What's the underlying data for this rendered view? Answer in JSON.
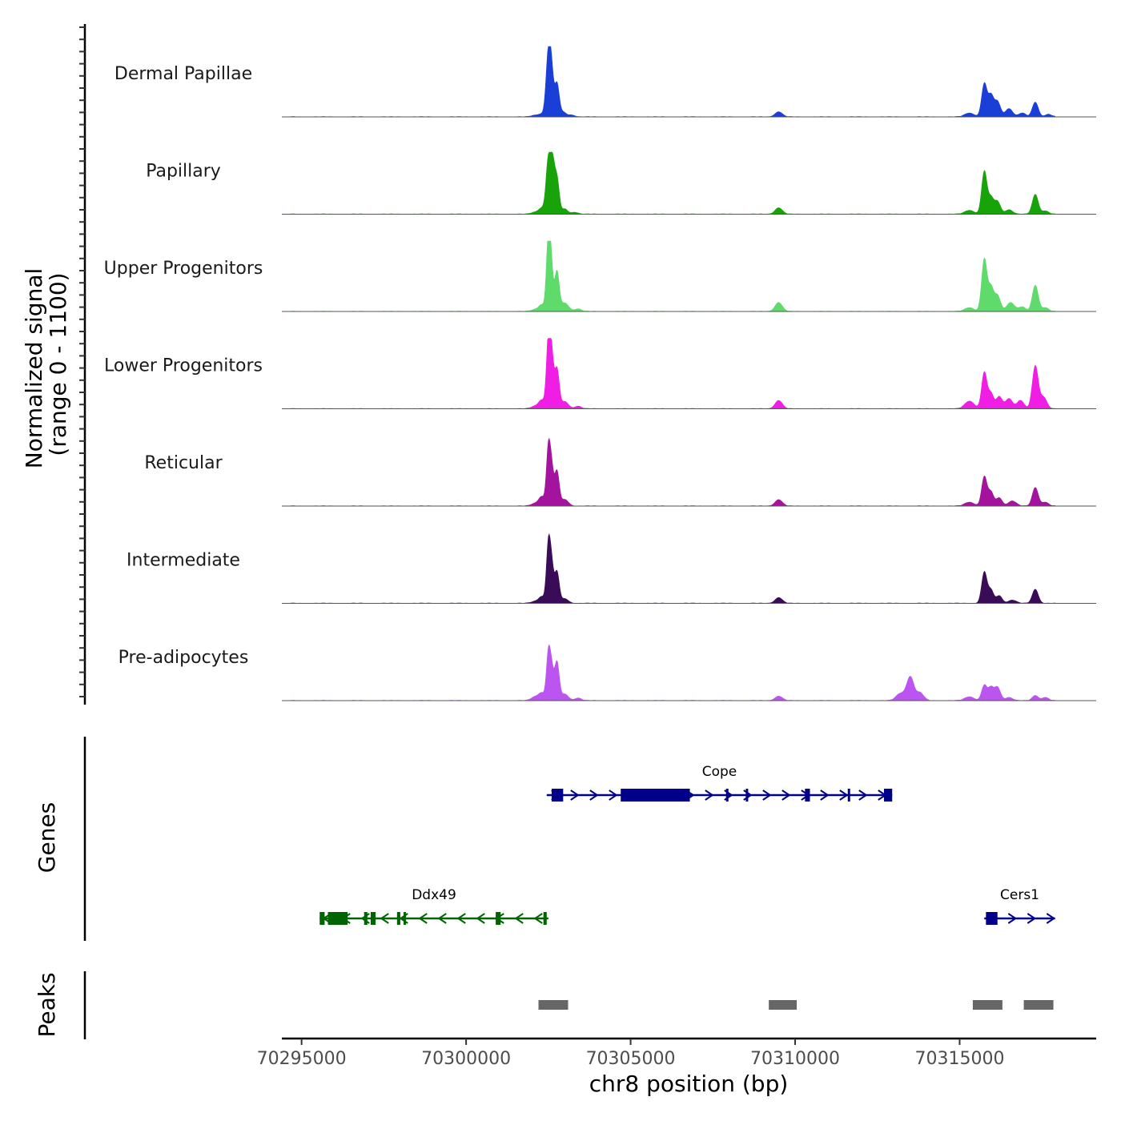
{
  "chart_data": {
    "type": "area",
    "title": "",
    "chromosome": "chr8",
    "xlabel": "chr8 position (bp)",
    "xlim": [
      70294400,
      70319150
    ],
    "x_ticks": [
      70295000,
      70300000,
      70305000,
      70310000,
      70315000
    ],
    "x_tick_labels": [
      "70295000",
      "70300000",
      "70305000",
      "70310000",
      "70315000"
    ],
    "signal_axis": {
      "label_line1": "Normalized signal",
      "label_line2": "(range 0 - 1100)",
      "ylim": [
        0,
        1100
      ]
    },
    "series": [
      {
        "name": "Dermal Papillae",
        "color": "#1a3fd6",
        "peaks": [
          {
            "center": 70302100,
            "width": 120,
            "height": 25
          },
          {
            "center": 70302300,
            "width": 90,
            "height": 40
          },
          {
            "center": 70302500,
            "width": 70,
            "height": 1000
          },
          {
            "center": 70302600,
            "width": 60,
            "height": 560
          },
          {
            "center": 70302760,
            "width": 70,
            "height": 520
          },
          {
            "center": 70302950,
            "width": 90,
            "height": 70
          },
          {
            "center": 70303200,
            "width": 100,
            "height": 30
          },
          {
            "center": 70309500,
            "width": 110,
            "height": 80
          },
          {
            "center": 70315300,
            "width": 140,
            "height": 60
          },
          {
            "center": 70315750,
            "width": 80,
            "height": 520
          },
          {
            "center": 70315950,
            "width": 80,
            "height": 330
          },
          {
            "center": 70316150,
            "width": 90,
            "height": 240
          },
          {
            "center": 70316500,
            "width": 110,
            "height": 130
          },
          {
            "center": 70316900,
            "width": 100,
            "height": 60
          },
          {
            "center": 70317300,
            "width": 90,
            "height": 230
          },
          {
            "center": 70317700,
            "width": 100,
            "height": 40
          }
        ]
      },
      {
        "name": "Papillary",
        "color": "#18a30a",
        "peaks": [
          {
            "center": 70302100,
            "width": 120,
            "height": 30
          },
          {
            "center": 70302300,
            "width": 90,
            "height": 90
          },
          {
            "center": 70302500,
            "width": 70,
            "height": 860
          },
          {
            "center": 70302630,
            "width": 60,
            "height": 700
          },
          {
            "center": 70302760,
            "width": 70,
            "height": 560
          },
          {
            "center": 70303000,
            "width": 90,
            "height": 80
          },
          {
            "center": 70303300,
            "width": 100,
            "height": 30
          },
          {
            "center": 70309500,
            "width": 110,
            "height": 100
          },
          {
            "center": 70315300,
            "width": 140,
            "height": 60
          },
          {
            "center": 70315750,
            "width": 80,
            "height": 670
          },
          {
            "center": 70315950,
            "width": 80,
            "height": 250
          },
          {
            "center": 70316150,
            "width": 90,
            "height": 200
          },
          {
            "center": 70316500,
            "width": 110,
            "height": 70
          },
          {
            "center": 70317300,
            "width": 90,
            "height": 310
          },
          {
            "center": 70317600,
            "width": 100,
            "height": 50
          }
        ]
      },
      {
        "name": "Upper Progenitors",
        "color": "#5fdb6c",
        "peaks": [
          {
            "center": 70302100,
            "width": 120,
            "height": 30
          },
          {
            "center": 70302300,
            "width": 90,
            "height": 100
          },
          {
            "center": 70302500,
            "width": 60,
            "height": 1100
          },
          {
            "center": 70302580,
            "width": 60,
            "height": 620
          },
          {
            "center": 70302760,
            "width": 70,
            "height": 620
          },
          {
            "center": 70303000,
            "width": 120,
            "height": 130
          },
          {
            "center": 70303400,
            "width": 100,
            "height": 40
          },
          {
            "center": 70309500,
            "width": 110,
            "height": 140
          },
          {
            "center": 70315300,
            "width": 140,
            "height": 60
          },
          {
            "center": 70315750,
            "width": 80,
            "height": 820
          },
          {
            "center": 70315950,
            "width": 80,
            "height": 370
          },
          {
            "center": 70316150,
            "width": 90,
            "height": 250
          },
          {
            "center": 70316550,
            "width": 120,
            "height": 140
          },
          {
            "center": 70316900,
            "width": 100,
            "height": 70
          },
          {
            "center": 70317300,
            "width": 90,
            "height": 410
          },
          {
            "center": 70317600,
            "width": 100,
            "height": 60
          }
        ]
      },
      {
        "name": "Lower Progenitors",
        "color": "#f01ee5",
        "peaks": [
          {
            "center": 70302100,
            "width": 120,
            "height": 40
          },
          {
            "center": 70302300,
            "width": 90,
            "height": 130
          },
          {
            "center": 70302500,
            "width": 60,
            "height": 1060
          },
          {
            "center": 70302600,
            "width": 60,
            "height": 760
          },
          {
            "center": 70302760,
            "width": 70,
            "height": 620
          },
          {
            "center": 70303000,
            "width": 110,
            "height": 110
          },
          {
            "center": 70303400,
            "width": 100,
            "height": 40
          },
          {
            "center": 70309500,
            "width": 110,
            "height": 130
          },
          {
            "center": 70315300,
            "width": 140,
            "height": 120
          },
          {
            "center": 70315750,
            "width": 80,
            "height": 570
          },
          {
            "center": 70315950,
            "width": 80,
            "height": 240
          },
          {
            "center": 70316200,
            "width": 90,
            "height": 190
          },
          {
            "center": 70316500,
            "width": 110,
            "height": 160
          },
          {
            "center": 70316850,
            "width": 100,
            "height": 130
          },
          {
            "center": 70317300,
            "width": 90,
            "height": 670
          },
          {
            "center": 70317550,
            "width": 100,
            "height": 180
          }
        ]
      },
      {
        "name": "Reticular",
        "color": "#a3139e",
        "peaks": [
          {
            "center": 70302100,
            "width": 120,
            "height": 40
          },
          {
            "center": 70302300,
            "width": 90,
            "height": 140
          },
          {
            "center": 70302500,
            "width": 60,
            "height": 880
          },
          {
            "center": 70302600,
            "width": 60,
            "height": 520
          },
          {
            "center": 70302760,
            "width": 70,
            "height": 540
          },
          {
            "center": 70303000,
            "width": 110,
            "height": 100
          },
          {
            "center": 70309500,
            "width": 110,
            "height": 100
          },
          {
            "center": 70315300,
            "width": 140,
            "height": 60
          },
          {
            "center": 70315750,
            "width": 80,
            "height": 460
          },
          {
            "center": 70315950,
            "width": 80,
            "height": 220
          },
          {
            "center": 70316200,
            "width": 90,
            "height": 130
          },
          {
            "center": 70316600,
            "width": 120,
            "height": 80
          },
          {
            "center": 70317300,
            "width": 90,
            "height": 290
          },
          {
            "center": 70317600,
            "width": 100,
            "height": 60
          }
        ]
      },
      {
        "name": "Intermediate",
        "color": "#3a0c57",
        "peaks": [
          {
            "center": 70302100,
            "width": 120,
            "height": 30
          },
          {
            "center": 70302300,
            "width": 90,
            "height": 100
          },
          {
            "center": 70302500,
            "width": 60,
            "height": 900
          },
          {
            "center": 70302600,
            "width": 60,
            "height": 540
          },
          {
            "center": 70302760,
            "width": 70,
            "height": 490
          },
          {
            "center": 70303000,
            "width": 110,
            "height": 70
          },
          {
            "center": 70309500,
            "width": 110,
            "height": 90
          },
          {
            "center": 70315750,
            "width": 80,
            "height": 490
          },
          {
            "center": 70315950,
            "width": 80,
            "height": 210
          },
          {
            "center": 70316200,
            "width": 90,
            "height": 120
          },
          {
            "center": 70316600,
            "width": 120,
            "height": 50
          },
          {
            "center": 70317300,
            "width": 90,
            "height": 220
          }
        ]
      },
      {
        "name": "Pre-adipocytes",
        "color": "#bc54f0",
        "peaks": [
          {
            "center": 70302100,
            "width": 120,
            "height": 60
          },
          {
            "center": 70302300,
            "width": 90,
            "height": 110
          },
          {
            "center": 70302500,
            "width": 60,
            "height": 720
          },
          {
            "center": 70302600,
            "width": 60,
            "height": 440
          },
          {
            "center": 70302760,
            "width": 70,
            "height": 600
          },
          {
            "center": 70303000,
            "width": 110,
            "height": 100
          },
          {
            "center": 70303400,
            "width": 100,
            "height": 40
          },
          {
            "center": 70309500,
            "width": 110,
            "height": 70
          },
          {
            "center": 70313200,
            "width": 130,
            "height": 110
          },
          {
            "center": 70313500,
            "width": 110,
            "height": 370
          },
          {
            "center": 70313800,
            "width": 110,
            "height": 120
          },
          {
            "center": 70315300,
            "width": 140,
            "height": 60
          },
          {
            "center": 70315750,
            "width": 80,
            "height": 240
          },
          {
            "center": 70315950,
            "width": 80,
            "height": 200
          },
          {
            "center": 70316150,
            "width": 90,
            "height": 210
          },
          {
            "center": 70316500,
            "width": 110,
            "height": 50
          },
          {
            "center": 70317300,
            "width": 90,
            "height": 80
          },
          {
            "center": 70317600,
            "width": 100,
            "height": 50
          }
        ]
      }
    ],
    "genes_track": {
      "label": "Genes",
      "genes": [
        {
          "name": "Cope",
          "strand": "+",
          "color": "#00008b",
          "row": 1,
          "start": 70302450,
          "end": 70312950,
          "exons": [
            {
              "start": 70302600,
              "end": 70302950
            },
            {
              "start": 70304700,
              "end": 70306800
            },
            {
              "start": 70307900,
              "end": 70307960
            },
            {
              "start": 70308500,
              "end": 70308560
            },
            {
              "start": 70310300,
              "end": 70310450
            },
            {
              "start": 70311600,
              "end": 70311650
            },
            {
              "start": 70312700,
              "end": 70312950
            }
          ]
        },
        {
          "name": "Ddx49",
          "strand": "-",
          "color": "#006400",
          "row": 2,
          "start": 70295550,
          "end": 70302500,
          "exons": [
            {
              "start": 70295550,
              "end": 70295700
            },
            {
              "start": 70295800,
              "end": 70296400
            },
            {
              "start": 70296900,
              "end": 70297000
            },
            {
              "start": 70297100,
              "end": 70297250
            },
            {
              "start": 70297900,
              "end": 70298000
            },
            {
              "start": 70298100,
              "end": 70298150
            },
            {
              "start": 70300900,
              "end": 70301050
            },
            {
              "start": 70302350,
              "end": 70302450
            }
          ]
        },
        {
          "name": "Cers1",
          "strand": "+",
          "color": "#00008b",
          "row": 2,
          "start": 70315750,
          "end": 70317900,
          "exons": [
            {
              "start": 70315800,
              "end": 70316150
            }
          ]
        }
      ]
    },
    "peaks_track": {
      "label": "Peaks",
      "color": "#666666",
      "regions": [
        {
          "start": 70302200,
          "end": 70303100
        },
        {
          "start": 70309200,
          "end": 70310050
        },
        {
          "start": 70315400,
          "end": 70316300
        },
        {
          "start": 70316950,
          "end": 70317850
        }
      ]
    }
  }
}
